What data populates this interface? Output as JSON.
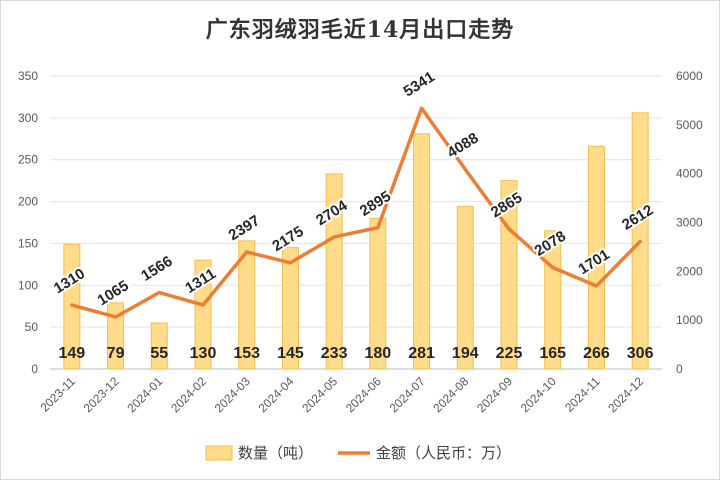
{
  "chart_data": {
    "type": "bar+line",
    "title": "广东羽绒羽毛近14月出口走势",
    "categories": [
      "2023-11",
      "2023-12",
      "2024-01",
      "2024-02",
      "2024-03",
      "2024-04",
      "2024-05",
      "2024-06",
      "2024-07",
      "2024-08",
      "2024-09",
      "2024-10",
      "2024-11",
      "2024-12"
    ],
    "series": [
      {
        "name": "数量（吨）",
        "type": "bar",
        "axis": "left",
        "color": "#ffdb8a",
        "values": [
          149,
          79,
          55,
          130,
          153,
          145,
          233,
          180,
          281,
          194,
          225,
          165,
          266,
          306
        ]
      },
      {
        "name": "金额（人民币：万）",
        "type": "line",
        "axis": "right",
        "color": "#ed7d31",
        "values": [
          1310,
          1065,
          1566,
          1311,
          2397,
          2175,
          2704,
          2895,
          5341,
          4088,
          2865,
          2078,
          1701,
          2612
        ]
      }
    ],
    "left_axis": {
      "min": 0,
      "max": 350,
      "ticks": [
        0,
        50,
        100,
        150,
        200,
        250,
        300,
        350
      ]
    },
    "right_axis": {
      "min": 0,
      "max": 6000,
      "ticks": [
        0,
        1000,
        2000,
        3000,
        4000,
        5000,
        6000
      ]
    },
    "grid": true,
    "legend": "bottom"
  }
}
